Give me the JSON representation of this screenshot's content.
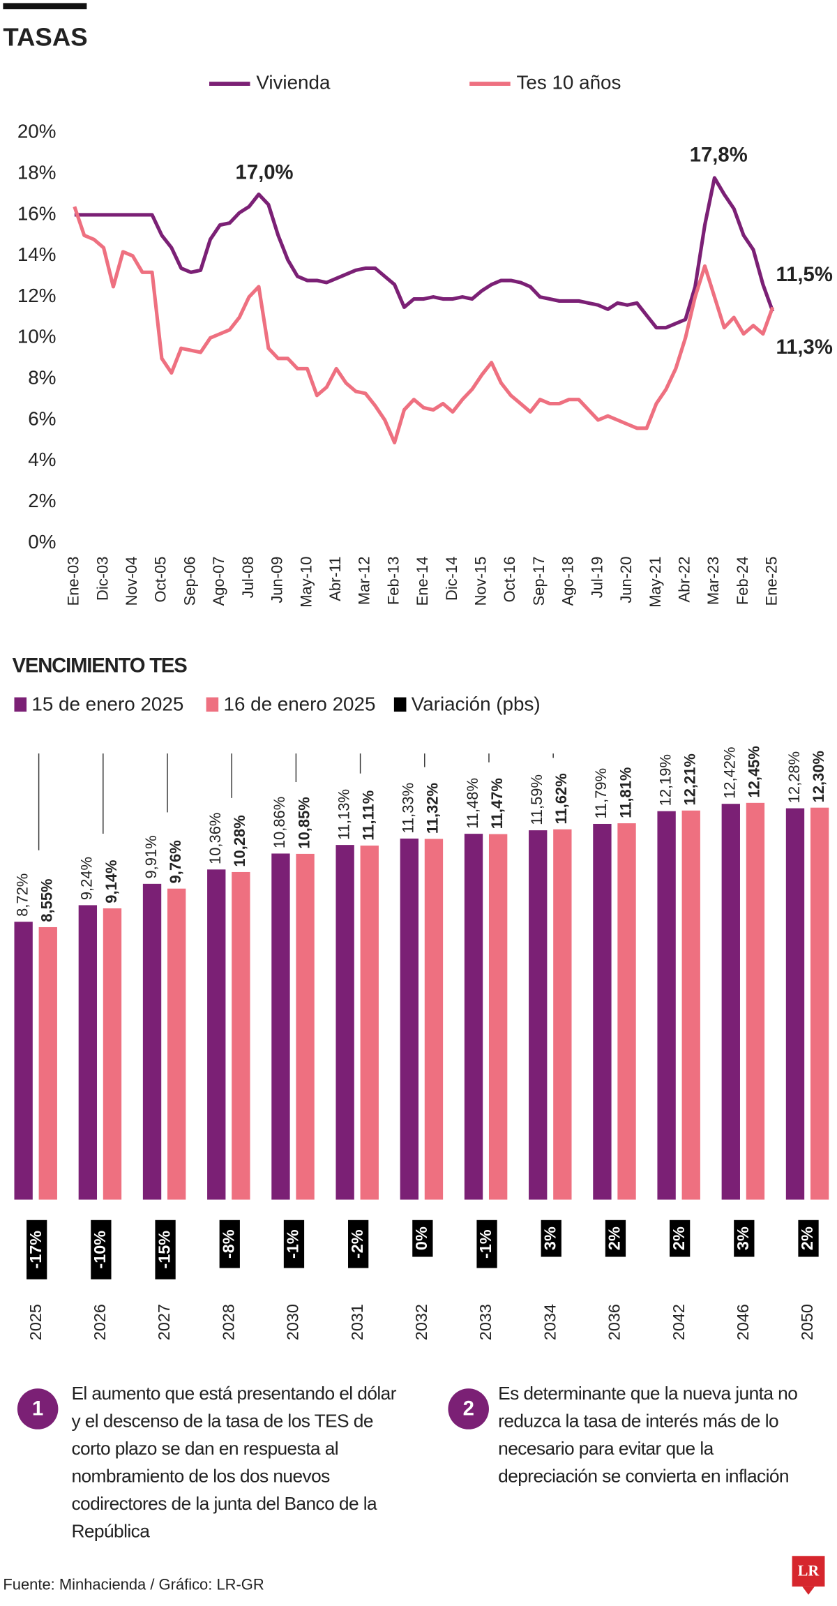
{
  "chart_data": [
    {
      "type": "line",
      "title": "TASAS",
      "categories": [
        "Ene-03",
        null,
        null,
        "Dic-03",
        null,
        null,
        "Nov-04",
        null,
        null,
        "Oct-05",
        null,
        null,
        "Sep-06",
        null,
        null,
        "Ago-07",
        null,
        null,
        "Jul-08",
        null,
        null,
        "Jun-09",
        null,
        null,
        "May-10",
        null,
        null,
        "Abr-11",
        null,
        null,
        "Mar-12",
        null,
        null,
        "Feb-13",
        null,
        null,
        "Ene-14",
        null,
        null,
        "Dic-14",
        null,
        null,
        "Nov-15",
        null,
        null,
        "Oct-16",
        null,
        null,
        "Sep-17",
        null,
        null,
        "Ago-18",
        null,
        null,
        "Jul-19",
        null,
        null,
        "Jun-20",
        null,
        null,
        "May-21",
        null,
        null,
        "Abr-22",
        null,
        null,
        "Mar-23",
        null,
        null,
        "Feb-24",
        null,
        null,
        "Ene-25"
      ],
      "series": [
        {
          "name": "Vivienda",
          "color": "#7b2075",
          "values": [
            16.0,
            16.0,
            16.0,
            16.0,
            16.0,
            16.0,
            16.0,
            16.0,
            16.0,
            15.0,
            14.4,
            13.4,
            13.2,
            13.3,
            14.8,
            15.5,
            15.6,
            16.1,
            16.4,
            17.0,
            16.5,
            15.0,
            13.8,
            13.0,
            12.8,
            12.8,
            12.7,
            12.9,
            13.1,
            13.3,
            13.4,
            13.4,
            13.0,
            12.6,
            11.5,
            11.9,
            11.9,
            12.0,
            11.9,
            11.9,
            12.0,
            11.9,
            12.3,
            12.6,
            12.8,
            12.8,
            12.7,
            12.5,
            12.0,
            11.9,
            11.8,
            11.8,
            11.8,
            11.7,
            11.6,
            11.4,
            11.7,
            11.6,
            11.7,
            11.1,
            10.5,
            10.5,
            10.7,
            10.9,
            12.5,
            15.5,
            17.8,
            17.0,
            16.3,
            15.0,
            14.3,
            12.6,
            11.3
          ]
        },
        {
          "name": "Tes 10 años",
          "color": "#ee7080",
          "values": [
            16.4,
            15.0,
            14.8,
            14.4,
            12.5,
            14.2,
            14.0,
            13.2,
            13.2,
            9.0,
            8.3,
            9.5,
            9.4,
            9.3,
            10.0,
            10.2,
            10.4,
            11.0,
            12.0,
            12.5,
            9.5,
            9.0,
            9.0,
            8.5,
            8.5,
            7.2,
            7.6,
            8.5,
            7.8,
            7.4,
            7.3,
            6.7,
            6.0,
            4.9,
            6.5,
            7.0,
            6.6,
            6.5,
            6.8,
            6.4,
            7.0,
            7.5,
            8.2,
            8.8,
            7.8,
            7.2,
            6.8,
            6.4,
            7.0,
            6.8,
            6.8,
            7.0,
            7.0,
            6.5,
            6.0,
            6.2,
            6.0,
            5.8,
            5.6,
            5.6,
            6.8,
            7.5,
            8.5,
            10.0,
            12.0,
            13.5,
            12.0,
            10.5,
            11.0,
            10.2,
            10.6,
            10.2,
            11.5
          ]
        }
      ],
      "ylim": [
        0,
        20
      ],
      "yticks": [
        {
          "value": 0,
          "label": "0%"
        },
        {
          "value": 2,
          "label": "2%"
        },
        {
          "value": 4,
          "label": "4%"
        },
        {
          "value": 6,
          "label": "6%"
        },
        {
          "value": 8,
          "label": "8%"
        },
        {
          "value": 10,
          "label": "10%"
        },
        {
          "value": 12,
          "label": "12%"
        },
        {
          "value": 14,
          "label": "14%"
        },
        {
          "value": 16,
          "label": "16%"
        },
        {
          "value": 18,
          "label": "18%"
        },
        {
          "value": 20,
          "label": "20%"
        }
      ],
      "annotations": [
        {
          "text": "17,0%"
        },
        {
          "text": "17,8%"
        },
        {
          "text": "11,5%"
        },
        {
          "text": "11,3%"
        }
      ],
      "grid": false
    },
    {
      "type": "bar",
      "title": "VENCIMIENTO TES",
      "categories": [
        "2025",
        "2026",
        "2027",
        "2028",
        "2030",
        "2031",
        "2032",
        "2033",
        "2034",
        "2036",
        "2042",
        "2046",
        "2050"
      ],
      "series": [
        {
          "name": "15 de enero 2025",
          "color": "#7b2075",
          "values": [
            8.72,
            9.24,
            9.91,
            10.36,
            10.86,
            11.13,
            11.33,
            11.48,
            11.59,
            11.79,
            12.19,
            12.42,
            12.28
          ],
          "value_labels": [
            "8,72%",
            "9,24%",
            "9,91%",
            "10,36%",
            "10,86%",
            "11,13%",
            "11,33%",
            "11,48%",
            "11,59%",
            "11,79%",
            "12,19%",
            "12,42%",
            "12,28%"
          ]
        },
        {
          "name": "16 de enero 2025",
          "color": "#ee7080",
          "values": [
            8.55,
            9.14,
            9.76,
            10.28,
            10.85,
            11.11,
            11.32,
            11.47,
            11.62,
            11.81,
            12.21,
            12.45,
            12.3
          ],
          "value_labels": [
            "8,55%",
            "9,14%",
            "9,76%",
            "10,28%",
            "10,85%",
            "11,11%",
            "11,32%",
            "11,47%",
            "11,62%",
            "11,81%",
            "12,21%",
            "12,45%",
            "12,30%"
          ]
        },
        {
          "name": "Variación (pbs)",
          "color": "#000000",
          "values": [
            -17,
            -10,
            -15,
            -8,
            -1,
            -2,
            0,
            -1,
            3,
            2,
            2,
            3,
            2
          ],
          "value_labels": [
            "-17%",
            "-10%",
            "-15%",
            "-8%",
            "-1%",
            "-2%",
            "0%",
            "-1%",
            "3%",
            "2%",
            "2%",
            "3%",
            "2%"
          ]
        }
      ],
      "ylim": [
        0,
        14
      ]
    }
  ],
  "notes": [
    {
      "number": "1",
      "lines": [
        "El aumento que está presentando el dólar",
        "y el descenso de la tasa de los TES de",
        "corto plazo se dan en respuesta al",
        "nombramiento de los dos nuevos",
        "codirectores de la junta del Banco de la",
        "República"
      ]
    },
    {
      "number": "2",
      "lines": [
        "Es determinante que la nueva junta no",
        "reduzca la tasa de interés más de lo",
        "necesario para evitar que la",
        "depreciación se convierta en inflación"
      ]
    }
  ],
  "source": "Fuente: Minhacienda / Gráfico: LR-GR",
  "logo": "LR"
}
